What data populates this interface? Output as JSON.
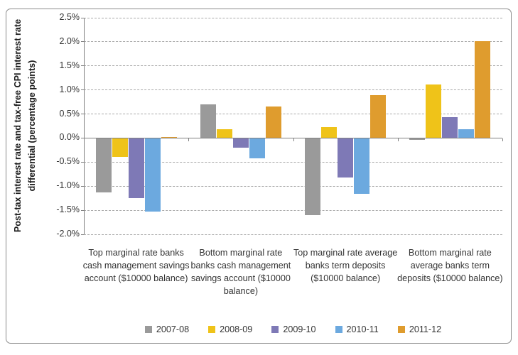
{
  "chart_data": {
    "type": "bar",
    "title": "",
    "ylabel": "Post-tax interest rate and tax-free CPI interest rate differential (percentage points)",
    "ylabel_lines": [
      "Post-tax interest rate and tax-free CPI interest rate",
      "differential (percentage points)"
    ],
    "ylim": [
      -2.0,
      2.5
    ],
    "ytick_step": 0.5,
    "ytick_labels": [
      "2.5%",
      "2.0%",
      "1.5%",
      "1.0%",
      "0.5%",
      "0.0%",
      "-0.5%",
      "-1.0%",
      "-1.5%",
      "-2.0%"
    ],
    "grid": "horizontal-dashed",
    "legend_position": "bottom",
    "categories": [
      "Top marginal rate banks cash management savings account ($10000 balance)",
      "Bottom marginal rate banks cash management savings account ($10000 balance)",
      "Top marginal rate average banks term deposits ($10000 balance)",
      "Bottom marginal rate average banks term deposits ($10000 balance)"
    ],
    "series": [
      {
        "name": "2007-08",
        "color": "#9a9a9a",
        "values": [
          -1.12,
          0.7,
          -1.59,
          -0.02
        ]
      },
      {
        "name": "2008-09",
        "color": "#efc319",
        "values": [
          -0.38,
          0.18,
          0.23,
          1.12
        ]
      },
      {
        "name": "2009-10",
        "color": "#7e79b6",
        "values": [
          -1.24,
          -0.18,
          -0.81,
          0.44
        ]
      },
      {
        "name": "2010-11",
        "color": "#6ca9df",
        "values": [
          -1.51,
          -0.4,
          -1.14,
          0.19
        ]
      },
      {
        "name": "2011-12",
        "color": "#df9c2e",
        "values": [
          0.02,
          0.66,
          0.89,
          2.02
        ]
      }
    ],
    "axis_color": "#808080"
  }
}
